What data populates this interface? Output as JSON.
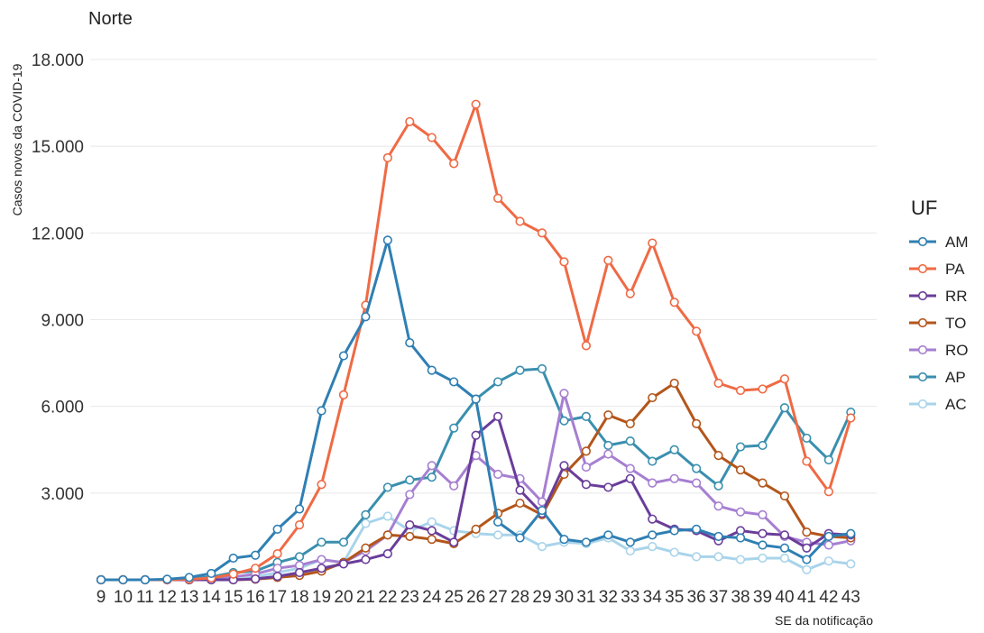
{
  "chart_data": {
    "type": "line",
    "title": "Norte",
    "xlabel": "SE da notificação",
    "ylabel": "Casos novos da COVID-19",
    "ylim": [
      0,
      18000
    ],
    "yticks": [
      3000,
      6000,
      9000,
      12000,
      15000,
      18000
    ],
    "ytick_labels": [
      "3.000",
      "6.000",
      "9.000",
      "12.000",
      "15.000",
      "18.000"
    ],
    "grid": true,
    "legend_title": "UF",
    "legend_position": "right",
    "x": [
      9,
      10,
      11,
      12,
      13,
      14,
      15,
      16,
      17,
      18,
      19,
      20,
      21,
      22,
      23,
      24,
      25,
      26,
      27,
      28,
      29,
      30,
      31,
      32,
      33,
      34,
      35,
      36,
      37,
      38,
      39,
      40,
      41,
      42,
      43
    ],
    "series": [
      {
        "name": "AM",
        "color": "#2f7fb3",
        "values": [
          0,
          0,
          0,
          20,
          80,
          220,
          750,
          850,
          1750,
          2450,
          5850,
          7750,
          9100,
          11750,
          8200,
          7250,
          6850,
          6250,
          2000,
          1450,
          2400,
          1400,
          1300,
          1550,
          1300,
          1550,
          1700,
          1750,
          1500,
          1450,
          1200,
          1100,
          700,
          1500,
          1600
        ]
      },
      {
        "name": "PA",
        "color": "#ef6a45",
        "values": [
          0,
          0,
          0,
          0,
          20,
          60,
          200,
          400,
          900,
          1900,
          3300,
          6400,
          9500,
          14600,
          15850,
          15300,
          14400,
          16450,
          13200,
          12400,
          12000,
          11000,
          8100,
          11050,
          9900,
          11650,
          9600,
          8600,
          6800,
          6550,
          6600,
          6950,
          4100,
          3050,
          5600
        ]
      },
      {
        "name": "RR",
        "color": "#6a3d9a",
        "values": [
          0,
          0,
          0,
          0,
          0,
          0,
          0,
          30,
          120,
          250,
          400,
          550,
          700,
          900,
          1900,
          1700,
          1300,
          5000,
          5650,
          3100,
          2300,
          3950,
          3300,
          3200,
          3500,
          2100,
          1750,
          1700,
          1350,
          1700,
          1600,
          1550,
          1100,
          1600,
          1550
        ]
      },
      {
        "name": "TO",
        "color": "#b3561b",
        "values": [
          0,
          0,
          0,
          0,
          0,
          0,
          0,
          20,
          80,
          150,
          300,
          600,
          1100,
          1550,
          1500,
          1400,
          1250,
          1750,
          2300,
          2650,
          2250,
          3650,
          4450,
          5700,
          5400,
          6300,
          6800,
          5400,
          4300,
          3800,
          3350,
          2900,
          1650,
          1500,
          1450
        ]
      },
      {
        "name": "RO",
        "color": "#a67fd1",
        "values": [
          0,
          0,
          0,
          0,
          20,
          60,
          100,
          200,
          400,
          500,
          700,
          600,
          1000,
          1550,
          2950,
          3950,
          3250,
          4300,
          3650,
          3500,
          2700,
          6450,
          3900,
          4350,
          3850,
          3350,
          3500,
          3350,
          2550,
          2350,
          2250,
          1500,
          1300,
          1200,
          1350
        ]
      },
      {
        "name": "AP",
        "color": "#3a8fae",
        "values": [
          0,
          0,
          0,
          0,
          30,
          100,
          250,
          300,
          600,
          800,
          1300,
          1300,
          2250,
          3200,
          3450,
          3550,
          5250,
          6250,
          6850,
          7250,
          7300,
          5500,
          5650,
          4650,
          4800,
          4100,
          4500,
          3850,
          3250,
          4600,
          4650,
          5950,
          4900,
          4150,
          5800
        ]
      },
      {
        "name": "AC",
        "color": "#a9d4ea",
        "values": [
          0,
          0,
          0,
          0,
          0,
          0,
          0,
          100,
          250,
          400,
          700,
          600,
          1950,
          2200,
          1700,
          2000,
          1700,
          1600,
          1550,
          1550,
          1150,
          1300,
          1250,
          1450,
          1000,
          1150,
          950,
          800,
          800,
          700,
          750,
          750,
          350,
          650,
          550
        ]
      }
    ]
  }
}
